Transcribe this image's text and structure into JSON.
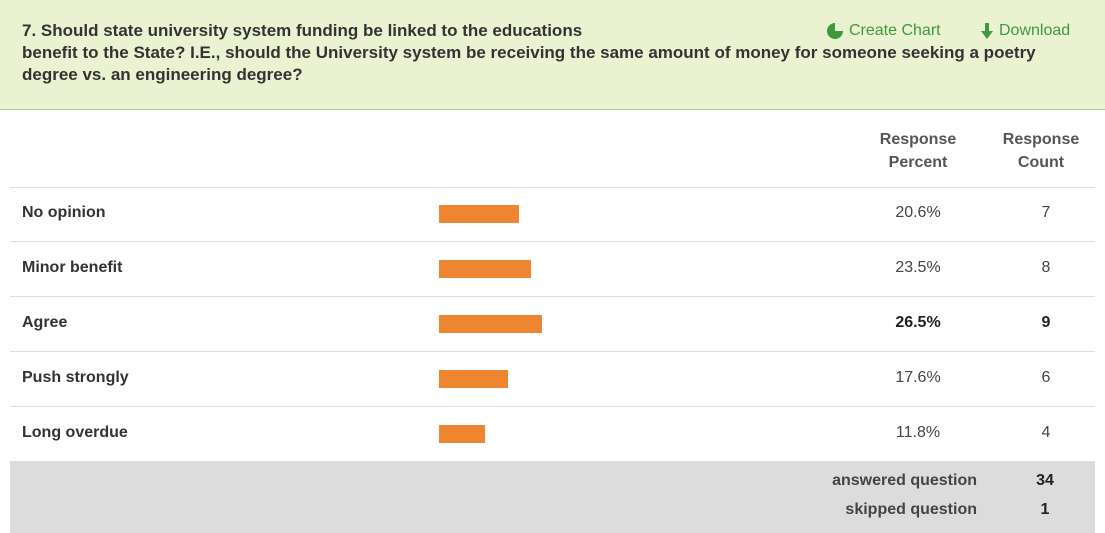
{
  "header": {
    "title": "7. Should state university system funding be linked to the educations",
    "title_rest": "benefit to the State? I.E., should the University system be receiving the same amount of money for someone seeking a poetry degree vs. an engineering degree?",
    "actions": [
      "Create Chart",
      "Download"
    ]
  },
  "table": {
    "columns": [
      "Response Percent",
      "Response Count"
    ],
    "rows": [
      {
        "label": "No opinion",
        "percent": 20.6,
        "percent_label": "20.6%",
        "count": 7
      },
      {
        "label": "Minor benefit",
        "percent": 23.5,
        "percent_label": "23.5%",
        "count": 8
      },
      {
        "label": "Agree",
        "percent": 26.5,
        "percent_label": "26.5%",
        "count": 9
      },
      {
        "label": "Push strongly",
        "percent": 17.6,
        "percent_label": "17.6%",
        "count": 6
      },
      {
        "label": "Long overdue",
        "percent": 11.8,
        "percent_label": "11.8%",
        "count": 4
      }
    ],
    "footer": [
      {
        "label": "answered question",
        "value": 34
      },
      {
        "label": "skipped question",
        "value": 1
      }
    ]
  }
}
